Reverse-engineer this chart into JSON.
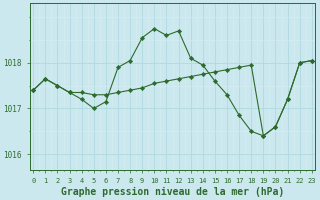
{
  "title": "Graphe pression niveau de la mer (hPa)",
  "x_values": [
    0,
    1,
    2,
    3,
    4,
    5,
    6,
    7,
    8,
    9,
    10,
    11,
    12,
    13,
    14,
    15,
    16,
    17,
    18,
    19,
    20,
    21,
    22,
    23
  ],
  "series1": [
    1017.4,
    1017.65,
    1017.5,
    1017.35,
    1017.2,
    1017.0,
    1017.15,
    1017.9,
    1018.05,
    1018.55,
    1018.75,
    1018.6,
    1018.7,
    1018.1,
    1017.95,
    1017.6,
    1017.3,
    1016.85,
    1016.5,
    1016.4,
    1016.6,
    1017.2,
    1018.0,
    1018.05
  ],
  "series2": [
    1017.4,
    1017.65,
    1017.5,
    1017.35,
    1017.35,
    1017.3,
    1017.3,
    1017.35,
    1017.4,
    1017.45,
    1017.55,
    1017.6,
    1017.65,
    1017.7,
    1017.75,
    1017.8,
    1017.85,
    1017.9,
    1017.95,
    1016.4,
    1016.6,
    1017.2,
    1018.0,
    1018.05
  ],
  "line_color": "#2d6a2d",
  "marker_color": "#2d6a2d",
  "bg_color": "#cce8ef",
  "grid_color_major": "#b0d8e0",
  "grid_color_minor": "#d8eef3",
  "yticks": [
    1016,
    1017,
    1018
  ],
  "ylim": [
    1015.65,
    1019.3
  ],
  "xlim": [
    -0.3,
    23.3
  ],
  "title_color": "#2d6a2d",
  "title_fontsize": 7.0,
  "axis_color": "#2d6a2d",
  "tick_fontsize": 5.0,
  "ytick_fontsize": 5.5
}
